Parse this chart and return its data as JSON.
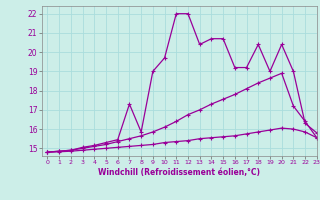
{
  "xlabel": "Windchill (Refroidissement éolien,°C)",
  "background_color": "#cceee8",
  "line_color": "#990099",
  "grid_color": "#aadddd",
  "x_values": [
    0,
    1,
    2,
    3,
    4,
    5,
    6,
    7,
    8,
    9,
    10,
    11,
    12,
    13,
    14,
    15,
    16,
    17,
    18,
    19,
    20,
    21,
    22,
    23
  ],
  "line1": [
    14.8,
    14.85,
    14.9,
    15.05,
    15.15,
    15.3,
    15.45,
    17.3,
    15.85,
    19.0,
    19.7,
    22.0,
    22.0,
    20.4,
    20.7,
    20.7,
    19.2,
    19.2,
    20.4,
    19.0,
    20.4,
    19.0,
    16.3,
    15.8
  ],
  "line2": [
    14.8,
    14.85,
    14.9,
    15.0,
    15.1,
    15.2,
    15.35,
    15.5,
    15.65,
    15.85,
    16.1,
    16.4,
    16.75,
    17.0,
    17.3,
    17.55,
    17.8,
    18.1,
    18.4,
    18.65,
    18.9,
    17.2,
    16.4,
    15.55
  ],
  "line3": [
    14.8,
    14.82,
    14.85,
    14.9,
    14.95,
    15.0,
    15.05,
    15.1,
    15.15,
    15.2,
    15.3,
    15.35,
    15.4,
    15.5,
    15.55,
    15.6,
    15.65,
    15.75,
    15.85,
    15.95,
    16.05,
    16.0,
    15.85,
    15.55
  ],
  "xlim": [
    -0.5,
    23
  ],
  "ylim": [
    14.6,
    22.4
  ],
  "yticks": [
    15,
    16,
    17,
    18,
    19,
    20,
    21,
    22
  ],
  "xticks": [
    0,
    1,
    2,
    3,
    4,
    5,
    6,
    7,
    8,
    9,
    10,
    11,
    12,
    13,
    14,
    15,
    16,
    17,
    18,
    19,
    20,
    21,
    22,
    23
  ]
}
